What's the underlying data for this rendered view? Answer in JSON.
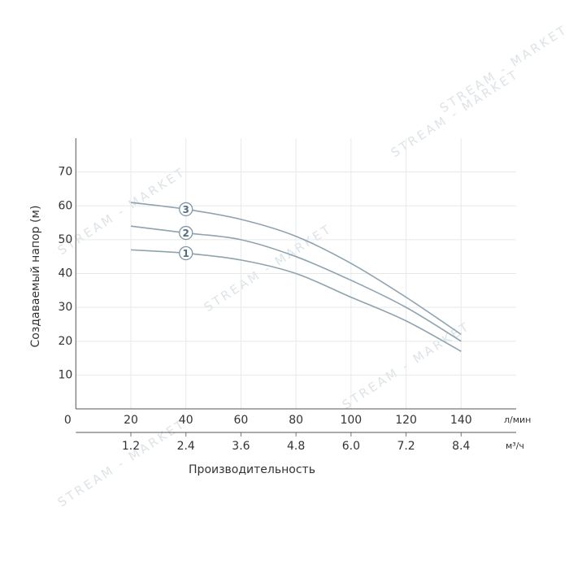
{
  "chart_data": {
    "type": "line",
    "ylabel": "Создаваемый напор (м)",
    "xlabel": "Производительность",
    "x_unit": "л/мин",
    "x2_unit": "м³/ч",
    "watermark": "STREAM - MARKET",
    "x": [
      20,
      40,
      60,
      80,
      100,
      120,
      140
    ],
    "series": [
      {
        "name": "1",
        "color": "#8fa3ae",
        "values": [
          47,
          46,
          44,
          40,
          33,
          26,
          17
        ]
      },
      {
        "name": "2",
        "color": "#8fa3ae",
        "values": [
          54,
          52,
          50,
          45,
          38,
          30,
          20
        ]
      },
      {
        "name": "3",
        "color": "#8fa3ae",
        "values": [
          61,
          59,
          56,
          51,
          43,
          33,
          22
        ]
      }
    ],
    "xlim": [
      0,
      160
    ],
    "xticks": [
      0,
      20,
      40,
      60,
      80,
      100,
      120,
      140
    ],
    "x2lim": [
      0,
      9.6
    ],
    "x2ticks": [
      1.2,
      2.4,
      3.6,
      4.8,
      {
        "value": 6,
        "label": "6.0"
      },
      7.2,
      8.4
    ],
    "ylim": [
      0,
      80
    ],
    "yticks": [
      10,
      20,
      30,
      40,
      50,
      60,
      70
    ],
    "grid": true
  }
}
